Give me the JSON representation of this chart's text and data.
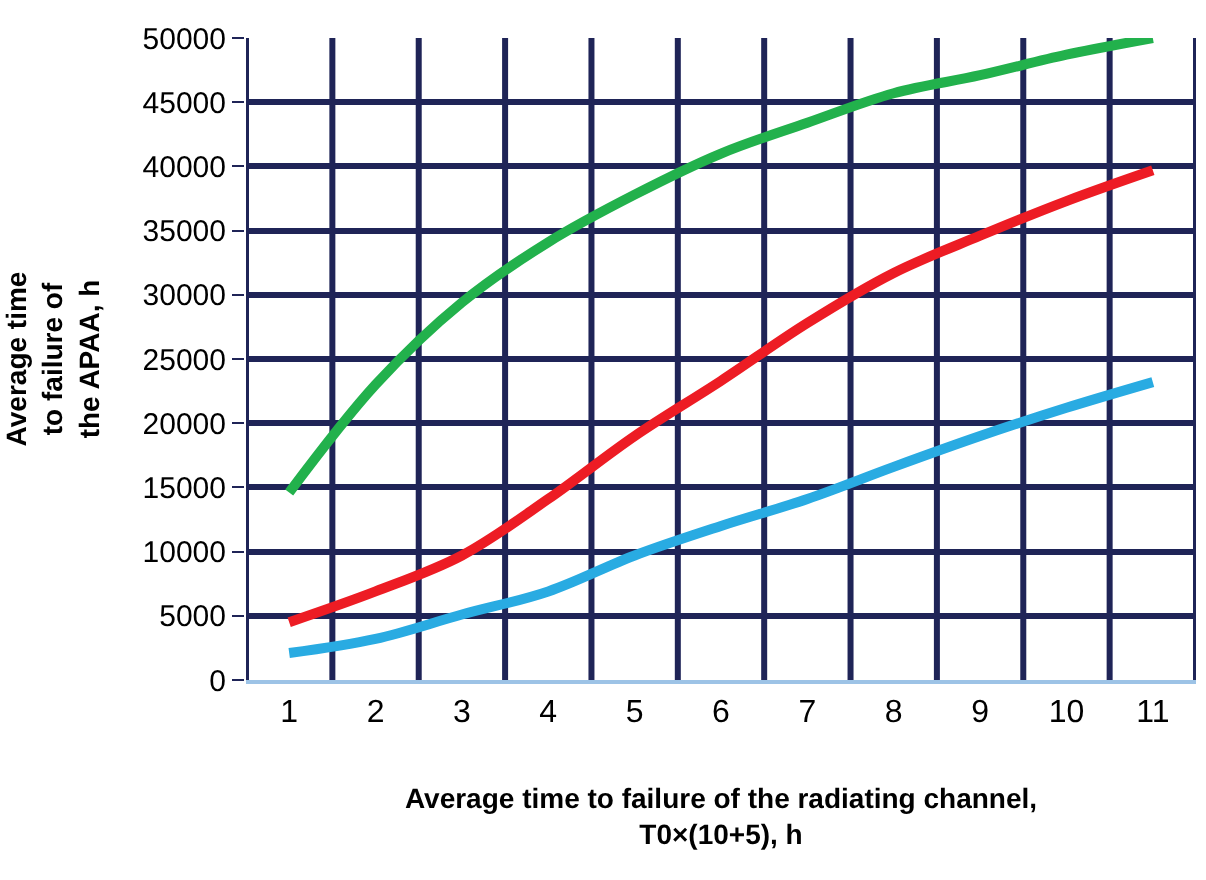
{
  "chart_data": {
    "type": "line",
    "xlabel": "Average time to failure of the radiating channel,\nT0×(10+5), h",
    "ylabel": "Average time\nto failure of\nthe APAA, h",
    "categories": [
      "1",
      "2",
      "3",
      "4",
      "5",
      "6",
      "7",
      "8",
      "9",
      "10",
      "11"
    ],
    "series": [
      {
        "color": "#22b14c",
        "values": [
          14600,
          23000,
          29400,
          34100,
          37800,
          41000,
          43400,
          45700,
          47100,
          48700,
          50000
        ]
      },
      {
        "color": "#ed1c24",
        "values": [
          4500,
          6900,
          9700,
          14100,
          19000,
          23300,
          27800,
          31700,
          34600,
          37300,
          39700
        ]
      },
      {
        "color": "#29abe2",
        "values": [
          2100,
          3200,
          5100,
          6900,
          9700,
          12000,
          14100,
          16600,
          19000,
          21200,
          23200
        ]
      }
    ],
    "ylim": [
      0,
      50000
    ],
    "yticks": [
      0,
      5000,
      10000,
      15000,
      20000,
      25000,
      30000,
      35000,
      40000,
      45000,
      50000
    ],
    "grid": true,
    "line_style": "solid",
    "marker": "none"
  }
}
